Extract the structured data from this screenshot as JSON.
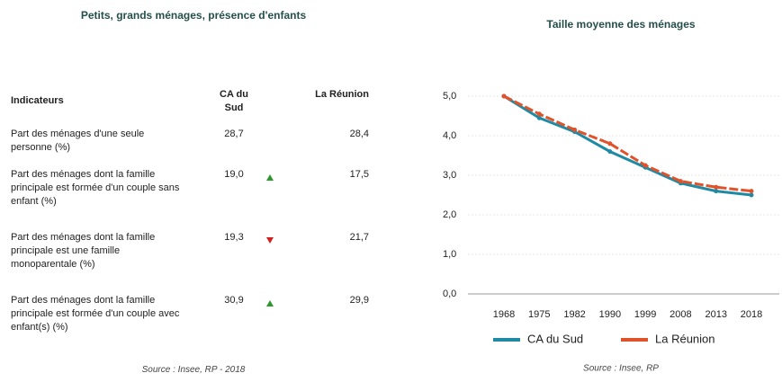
{
  "left": {
    "title": "Petits, grands ménages, présence d'enfants",
    "table": {
      "header": [
        "Indicateurs",
        "CA du Sud",
        "La Réunion"
      ],
      "rows": [
        [
          "Part des ménages d'une seule personne (%)",
          "28,7",
          "28,4"
        ],
        [
          "Part des ménages dont la famille principale est formée d'un couple sans enfant (%)",
          "19,0",
          "17,5"
        ],
        [
          "Part des ménages dont la famille principale est une famille monoparentale (%)",
          "19,3",
          "21,7"
        ],
        [
          "Part des ménages dont la famille principale est formée d'un couple avec enfant(s) (%)",
          "30,9",
          "29,9"
        ]
      ]
    },
    "source": "Source : Insee, RP - 2018"
  },
  "chart_data": {
    "type": "line",
    "title": "Taille moyenne des ménages",
    "categories": [
      "1968",
      "1975",
      "1982",
      "1990",
      "1999",
      "2008",
      "2013",
      "2018"
    ],
    "series": [
      {
        "name": "CA du Sud",
        "color": "#1f8aa3",
        "linestyle": "solid",
        "values": [
          5.0,
          4.45,
          4.1,
          3.6,
          3.2,
          2.8,
          2.6,
          2.5
        ]
      },
      {
        "name": "La Réunion",
        "color": "#e0532a",
        "linestyle": "dashed",
        "values": [
          5.0,
          4.55,
          4.15,
          3.8,
          3.25,
          2.85,
          2.7,
          2.6
        ]
      }
    ],
    "ylim": [
      0,
      5
    ],
    "yticks": [
      {
        "value": 0,
        "label": "0,0"
      },
      {
        "value": 1,
        "label": "1,0"
      },
      {
        "value": 2,
        "label": "2,0"
      },
      {
        "value": 3,
        "label": "3,0"
      },
      {
        "value": 4,
        "label": "4,0"
      },
      {
        "value": 5,
        "label": "5,0"
      }
    ],
    "grid": true,
    "legend": "bottom",
    "source": "Source : Insee, RP"
  }
}
